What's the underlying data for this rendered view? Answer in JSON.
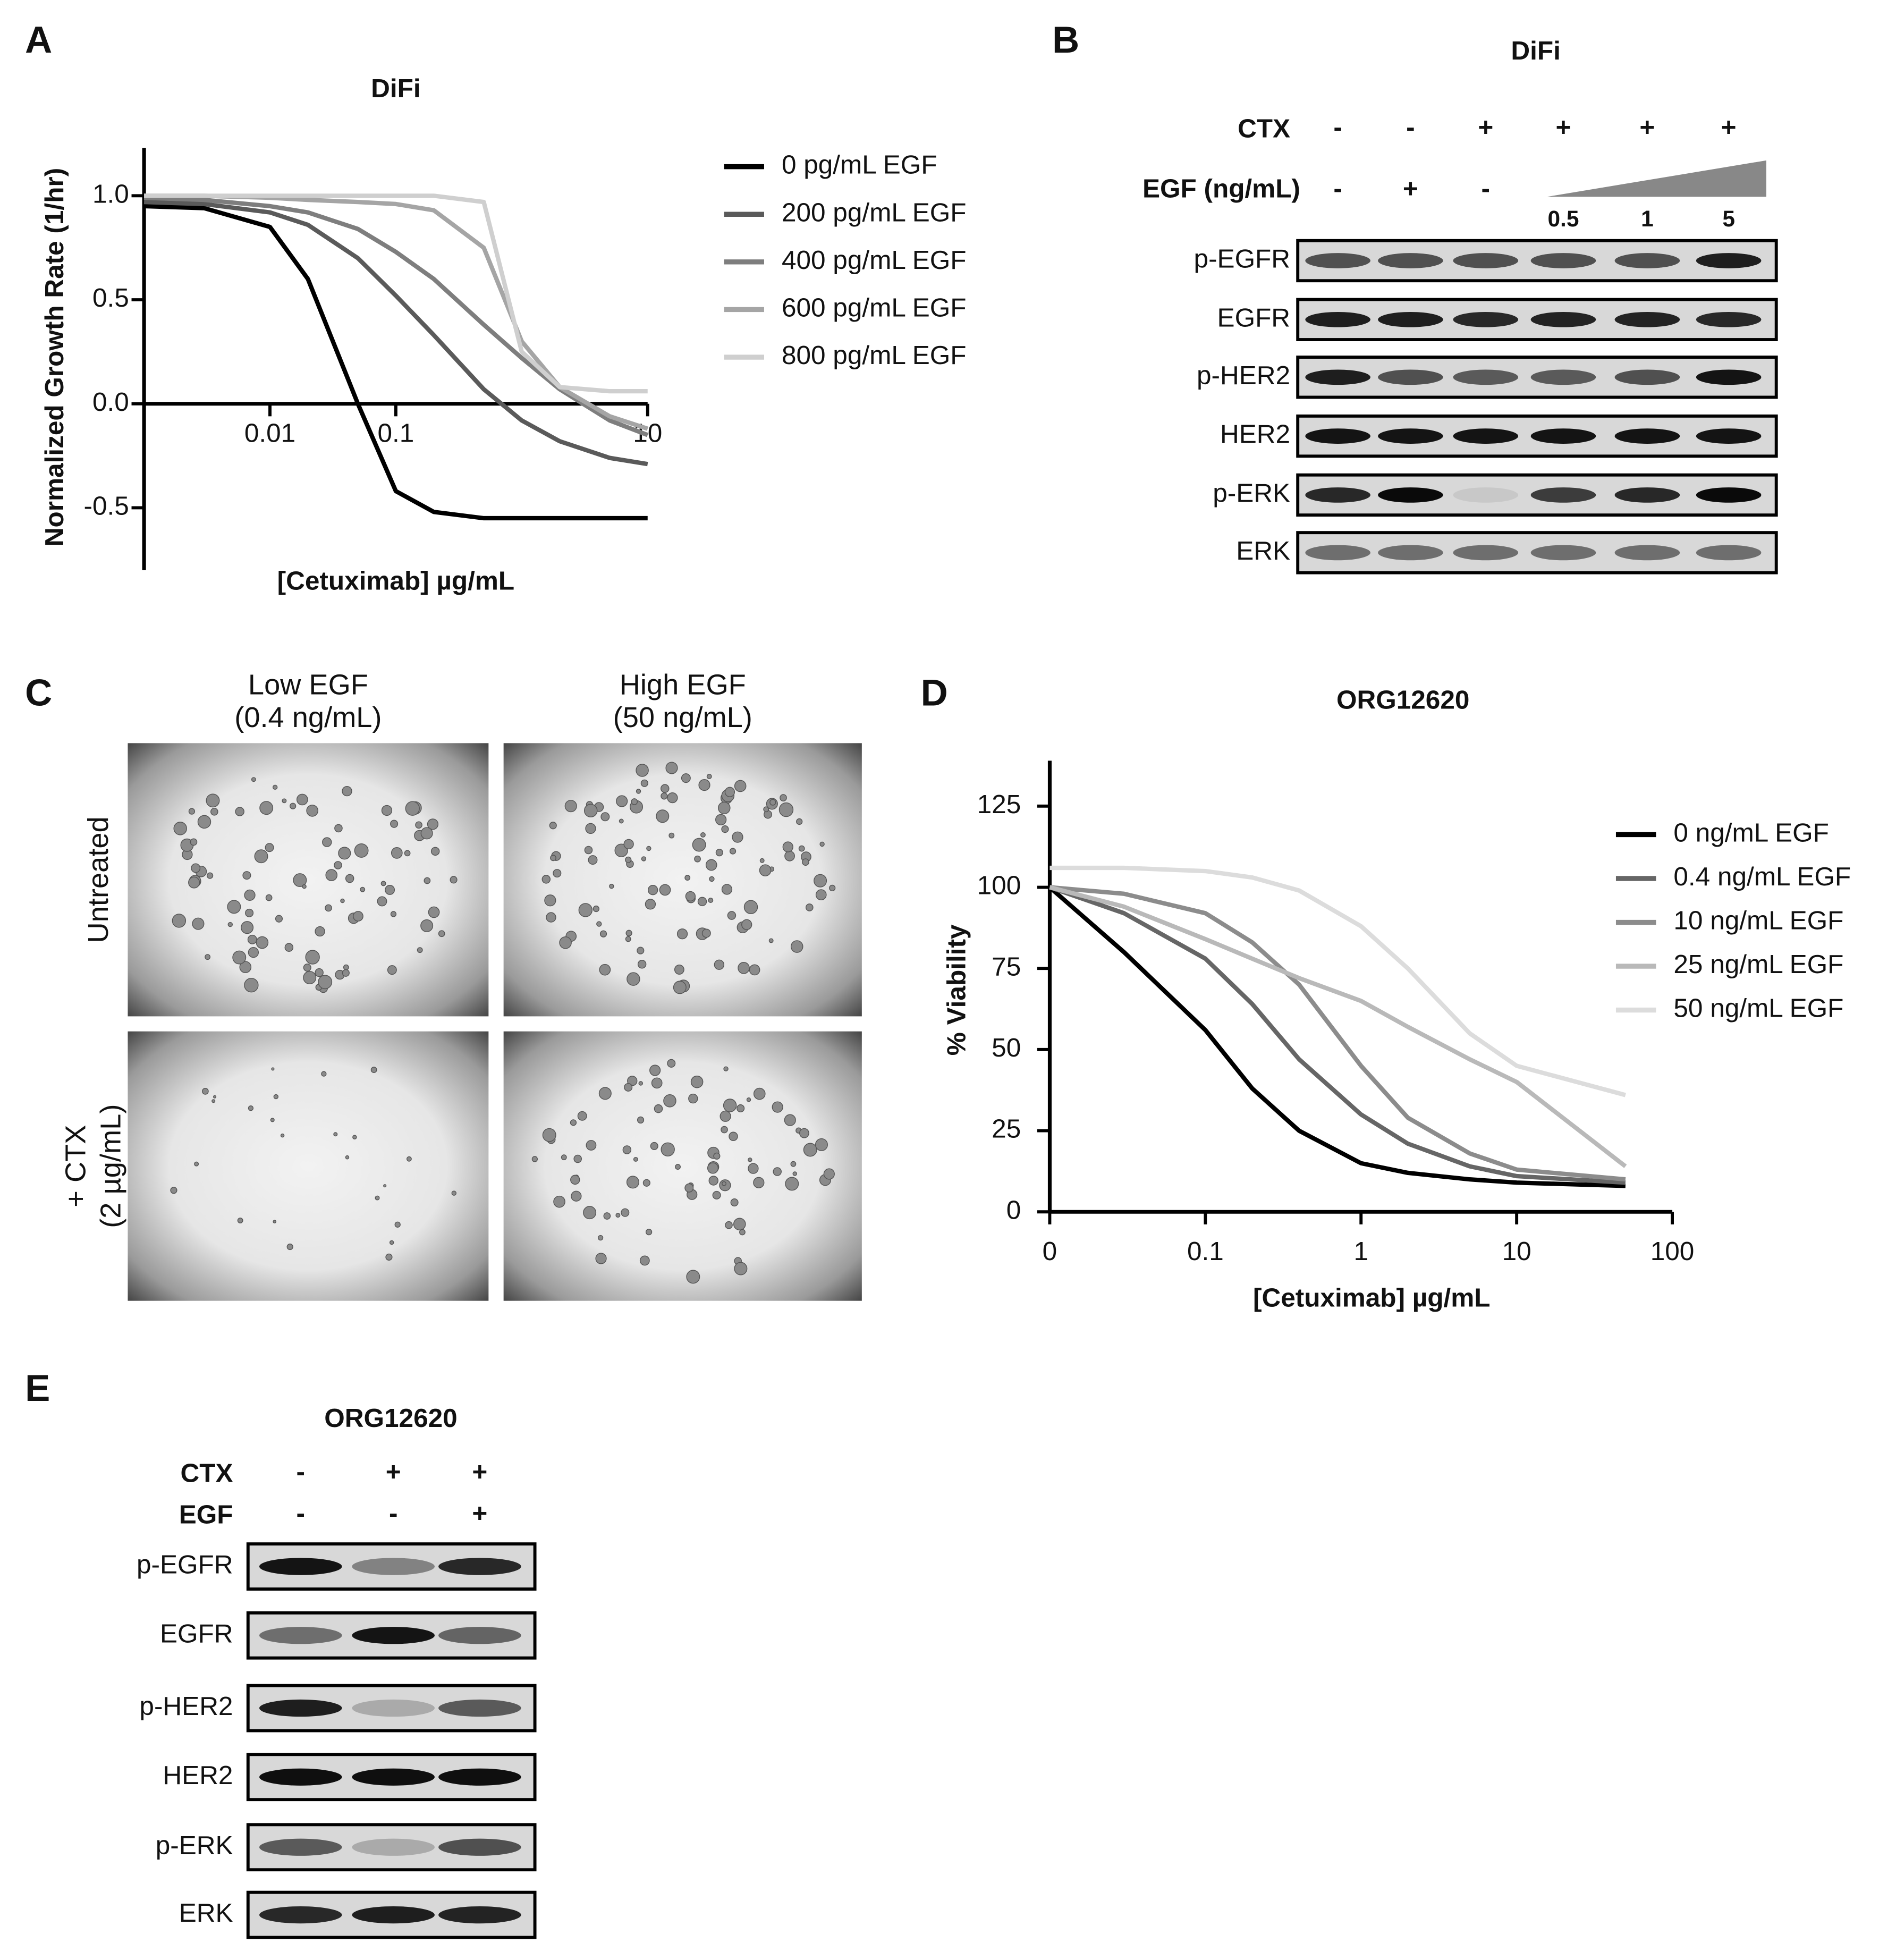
{
  "panel_labels": [
    "A",
    "B",
    "C",
    "D",
    "E"
  ],
  "chart_data": [
    {
      "type": "line",
      "title": "DiFi",
      "x_label": "[Cetuximab]  µg/mL",
      "y_label": "Normalized Growth Rate (1/hr)",
      "log_x": true,
      "x": [
        0.001,
        0.003,
        0.01,
        0.02,
        0.05,
        0.1,
        0.2,
        0.5,
        1,
        2,
        5,
        10
      ],
      "xlim": [
        0.001,
        10
      ],
      "xticks": [
        0.01,
        0.1,
        10
      ],
      "ylim": [
        -0.8,
        1.23
      ],
      "yticks": [
        {
          "value": 1,
          "label": "1.0"
        },
        {
          "value": 0.5,
          "label": "0.5"
        },
        {
          "value": 0,
          "label": "0.0"
        },
        {
          "value": -0.5,
          "label": "-0.5"
        }
      ],
      "series": [
        {
          "name": "0 pg/mL EGF",
          "color": "#000000",
          "values": [
            0.95,
            0.94,
            0.85,
            0.6,
            0.0,
            -0.42,
            -0.52,
            -0.55,
            -0.55,
            -0.55,
            -0.55,
            -0.55
          ]
        },
        {
          "name": "200 pg/mL EGF",
          "color": "#5a5a5a",
          "values": [
            0.97,
            0.96,
            0.92,
            0.86,
            0.7,
            0.52,
            0.33,
            0.07,
            -0.08,
            -0.18,
            -0.26,
            -0.29
          ]
        },
        {
          "name": "400 pg/mL EGF",
          "color": "#7e7e7e",
          "values": [
            0.99,
            0.98,
            0.95,
            0.92,
            0.84,
            0.73,
            0.6,
            0.38,
            0.22,
            0.07,
            -0.08,
            -0.15
          ]
        },
        {
          "name": "600 pg/mL EGF",
          "color": "#a5a5a5",
          "values": [
            1.0,
            1.0,
            0.99,
            0.98,
            0.97,
            0.96,
            0.93,
            0.75,
            0.3,
            0.08,
            -0.06,
            -0.12
          ]
        },
        {
          "name": "800 pg/mL EGF",
          "color": "#cfcfcf",
          "values": [
            1.0,
            1.0,
            1.0,
            1.0,
            1.0,
            1.0,
            1.0,
            0.97,
            0.25,
            0.08,
            0.06,
            0.06
          ]
        }
      ]
    },
    {
      "type": "line",
      "title": "ORG12620",
      "x_label": "[Cetuximab]  µg/mL",
      "y_label": "% Viability",
      "log_x": true,
      "x": [
        0.01,
        0.03,
        0.1,
        0.2,
        0.4,
        1,
        2,
        5,
        10,
        50
      ],
      "xlim": [
        0.01,
        100
      ],
      "xticks": [
        {
          "value": 0.01,
          "label": "0"
        },
        0.1,
        1,
        10,
        100
      ],
      "ylim": [
        0,
        139
      ],
      "yticks": [
        0,
        25,
        50,
        75,
        100,
        125
      ],
      "series": [
        {
          "name": "0 ng/mL EGF",
          "color": "#000000",
          "values": [
            100,
            80,
            56,
            38,
            25,
            15,
            12,
            10,
            9,
            8
          ]
        },
        {
          "name": "0.4 ng/mL EGF",
          "color": "#666666",
          "values": [
            100,
            92,
            78,
            64,
            47,
            30,
            21,
            14,
            11,
            9
          ]
        },
        {
          "name": "10 ng/mL EGF",
          "color": "#8c8c8c",
          "values": [
            100,
            98,
            92,
            83,
            70,
            45,
            29,
            18,
            13,
            10
          ]
        },
        {
          "name": "25 ng/mL EGF",
          "color": "#b9b9b9",
          "values": [
            100,
            94,
            84,
            78,
            72,
            65,
            57,
            47,
            40,
            14
          ]
        },
        {
          "name": "50 ng/mL EGF",
          "color": "#dcdcdc",
          "values": [
            106,
            106,
            105,
            103,
            99,
            88,
            75,
            55,
            45,
            36
          ]
        }
      ]
    }
  ],
  "blot_b": {
    "title": "DiFi",
    "ctx_label": "CTX",
    "ctx": [
      "-",
      "-",
      "+",
      "+",
      "+",
      "+"
    ],
    "egf_label": "EGF (ng/mL)",
    "egf": [
      "-",
      "+",
      "-"
    ],
    "egf_doses": [
      "0.5",
      "1",
      "5"
    ],
    "rows": [
      "p-EGFR",
      "EGFR",
      "p-HER2",
      "HER2",
      "p-ERK",
      "ERK"
    ]
  },
  "images_c": {
    "columns": [
      [
        "Low EGF",
        "(0.4 ng/mL)"
      ],
      [
        "High EGF",
        "(50 ng/mL)"
      ]
    ],
    "rows": [
      [
        "Untreated"
      ],
      [
        "+ CTX",
        "(2 µg/mL)"
      ]
    ]
  },
  "blot_e": {
    "title": "ORG12620",
    "ctx_label": "CTX",
    "ctx": [
      "-",
      "+",
      "+"
    ],
    "egf_label": "EGF",
    "egf": [
      "-",
      "-",
      "+"
    ],
    "rows": [
      "p-EGFR",
      "EGFR",
      "p-HER2",
      "HER2",
      "p-ERK",
      "ERK"
    ]
  }
}
